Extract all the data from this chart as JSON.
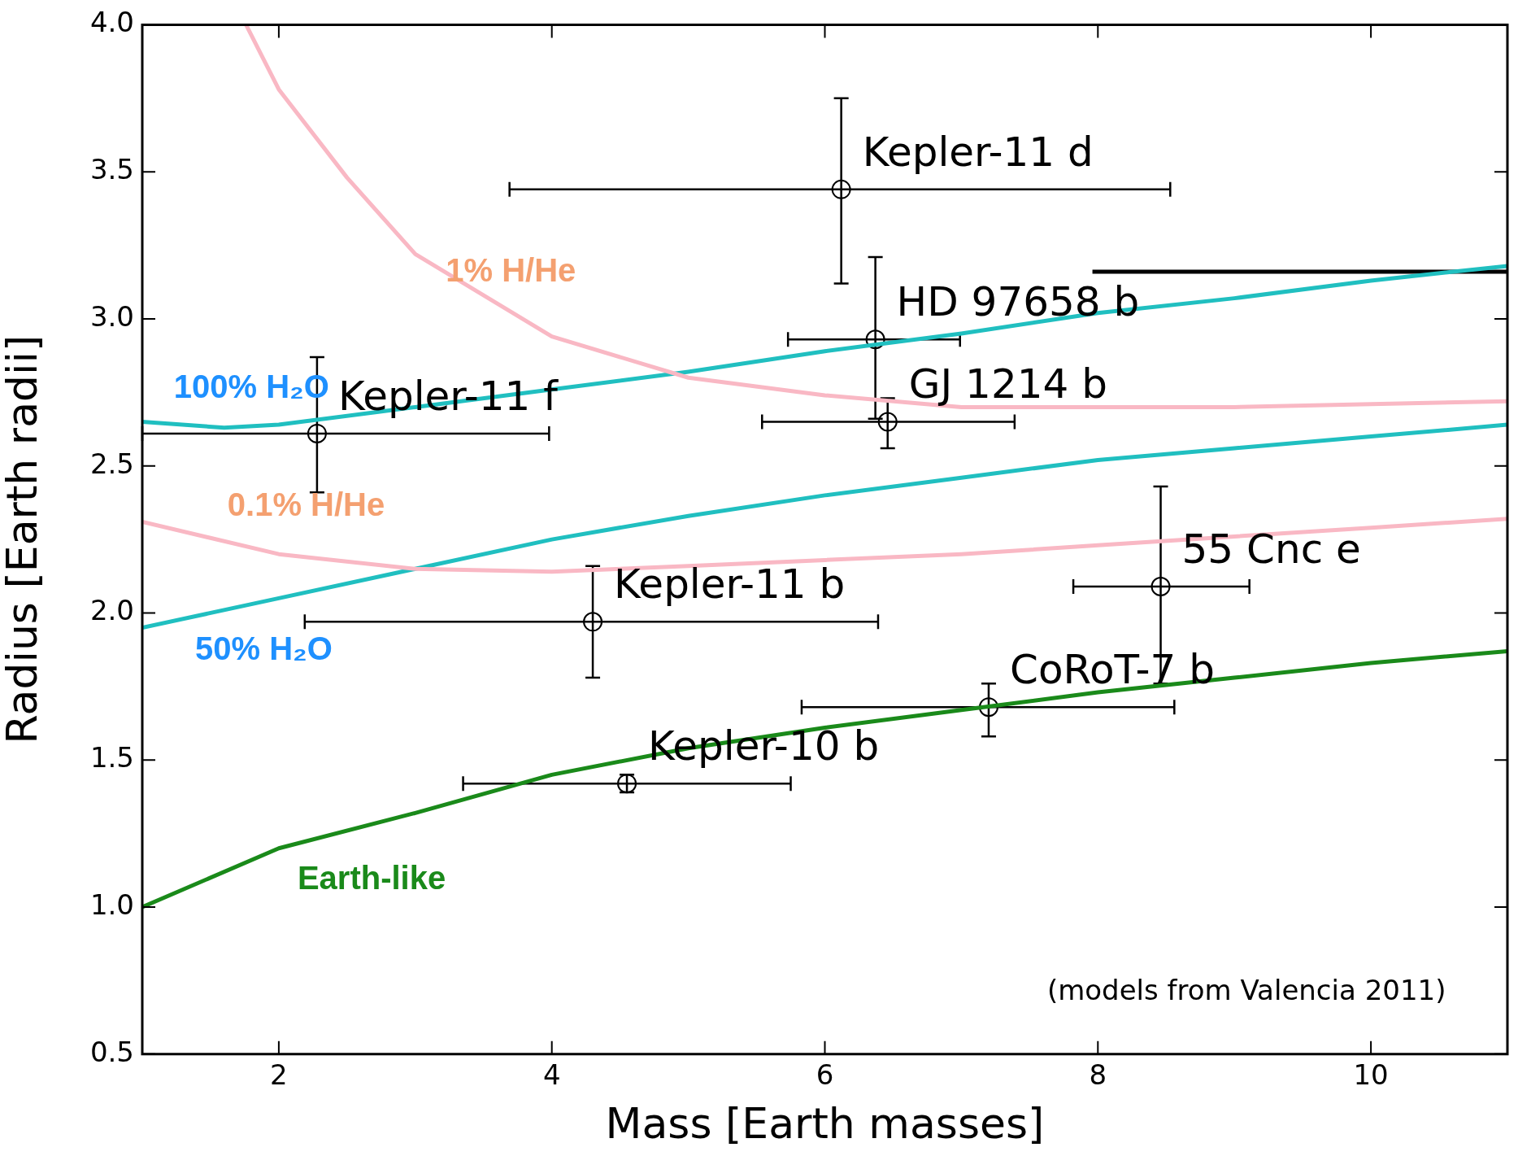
{
  "chart_data": {
    "type": "scatter",
    "xlabel": "Mass [Earth masses]",
    "ylabel": "Radius [Earth radii]",
    "xlim": [
      1,
      11
    ],
    "xticks": [
      2,
      4,
      6,
      8,
      10
    ],
    "ylim": [
      0.5,
      4.0
    ],
    "yticks": [
      {
        "value": 0.5,
        "label": "0.5"
      },
      {
        "value": 1,
        "label": "1.0"
      },
      {
        "value": 1.5,
        "label": "1.5"
      },
      {
        "value": 2,
        "label": "2.0"
      },
      {
        "value": 2.5,
        "label": "2.5"
      },
      {
        "value": 3,
        "label": "3.0"
      },
      {
        "value": 3.5,
        "label": "3.5"
      },
      {
        "value": 4,
        "label": "4.0"
      }
    ],
    "grid": false,
    "legend": false,
    "marker": "circle",
    "annotations": [
      "(models from Valencia 2011)"
    ],
    "series": [
      {
        "type": "line",
        "name": "1% H/He",
        "color": "#f9b8c4",
        "marker": "none",
        "x": [
          1.76,
          2,
          2.5,
          3,
          4,
          5,
          6,
          7,
          8,
          9,
          10,
          11
        ],
        "values": [
          4.0,
          3.78,
          3.48,
          3.22,
          2.94,
          2.8,
          2.74,
          2.7,
          2.7,
          2.7,
          2.71,
          2.72
        ]
      },
      {
        "type": "line",
        "name": "100% H₂O",
        "color": "#20bfc0",
        "marker": "none",
        "x": [
          1,
          1.6,
          2,
          3,
          4,
          5,
          6,
          7,
          8,
          9,
          10,
          11
        ],
        "values": [
          2.65,
          2.63,
          2.64,
          2.7,
          2.76,
          2.82,
          2.89,
          2.95,
          3.02,
          3.07,
          3.13,
          3.18
        ]
      },
      {
        "type": "line",
        "name": "0.1% H/He",
        "color": "#f9b8c4",
        "marker": "none",
        "x": [
          1,
          2,
          3,
          4,
          5,
          6,
          7,
          8,
          9,
          10,
          11
        ],
        "values": [
          2.31,
          2.2,
          2.15,
          2.14,
          2.16,
          2.18,
          2.2,
          2.23,
          2.26,
          2.29,
          2.32
        ]
      },
      {
        "type": "line",
        "name": "50% H₂O",
        "color": "#20bfc0",
        "marker": "none",
        "x": [
          1,
          2,
          3,
          4,
          5,
          6,
          7,
          8,
          9,
          10,
          11
        ],
        "values": [
          1.95,
          2.05,
          2.15,
          2.25,
          2.33,
          2.4,
          2.46,
          2.52,
          2.56,
          2.6,
          2.64
        ]
      },
      {
        "type": "line",
        "name": "Earth-like",
        "color": "#1a8a1a",
        "marker": "none",
        "x": [
          1,
          2,
          3,
          4,
          5,
          6,
          7,
          8,
          9,
          10,
          11
        ],
        "values": [
          1.0,
          1.2,
          1.32,
          1.45,
          1.54,
          1.61,
          1.67,
          1.73,
          1.78,
          1.83,
          1.87
        ]
      },
      {
        "type": "line",
        "color": "#000000",
        "marker": "none",
        "x": [
          7.96,
          11
        ],
        "values": [
          3.16,
          3.16
        ]
      },
      {
        "name": "Kepler-11 d",
        "color": "#000000",
        "x": [
          6.12
        ],
        "values": [
          3.44
        ],
        "errors": [
          [
            3.12,
            3.75
          ]
        ],
        "xerrors": [
          [
            3.69,
            8.53
          ]
        ]
      },
      {
        "name": "HD 97658 b",
        "color": "#000000",
        "x": [
          6.37
        ],
        "values": [
          2.93
        ],
        "errors": [
          [
            2.66,
            3.21
          ]
        ],
        "xerrors": [
          [
            5.73,
            6.99
          ]
        ]
      },
      {
        "name": "GJ 1214 b",
        "color": "#000000",
        "x": [
          6.46
        ],
        "values": [
          2.65
        ],
        "errors": [
          [
            2.56,
            2.73
          ]
        ],
        "xerrors": [
          [
            5.54,
            7.39
          ]
        ]
      },
      {
        "name": "Kepler-11 f",
        "color": "#000000",
        "x": [
          2.28
        ],
        "values": [
          2.61
        ],
        "errors": [
          [
            2.41,
            2.87
          ]
        ],
        "xerrors": [
          [
            1.0,
            3.98
          ]
        ]
      },
      {
        "name": "Kepler-11 b",
        "color": "#000000",
        "x": [
          4.3
        ],
        "values": [
          1.97
        ],
        "errors": [
          [
            1.78,
            2.16
          ]
        ],
        "xerrors": [
          [
            2.19,
            6.39
          ]
        ]
      },
      {
        "name": "55 Cnc e",
        "color": "#000000",
        "x": [
          8.46
        ],
        "values": [
          2.09
        ],
        "errors": [
          [
            1.76,
            2.43
          ]
        ],
        "xerrors": [
          [
            7.82,
            9.11
          ]
        ]
      },
      {
        "name": "CoRoT-7 b",
        "color": "#000000",
        "x": [
          7.2
        ],
        "values": [
          1.68
        ],
        "errors": [
          [
            1.58,
            1.76
          ]
        ],
        "xerrors": [
          [
            5.83,
            8.56
          ]
        ]
      },
      {
        "name": "Kepler-10 b",
        "color": "#000000",
        "x": [
          4.55
        ],
        "values": [
          1.42
        ],
        "errors": [
          [
            1.39,
            1.45
          ]
        ],
        "xerrors": [
          [
            3.35,
            5.75
          ]
        ]
      }
    ]
  }
}
